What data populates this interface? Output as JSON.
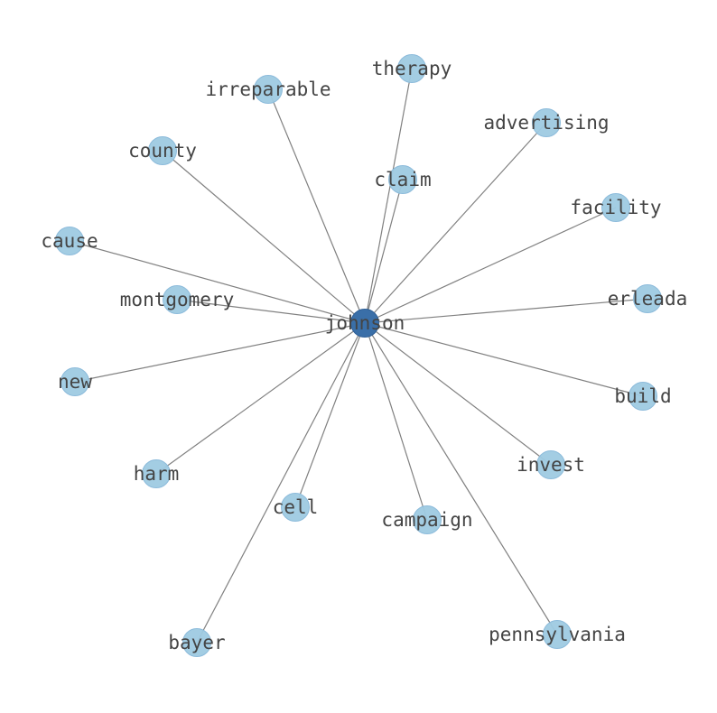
{
  "graph": {
    "center": "johnson",
    "leaves": [
      "therapy",
      "irreparable",
      "advertising",
      "county",
      "claim",
      "facility",
      "cause",
      "montgomery",
      "erleada",
      "new",
      "build",
      "invest",
      "harm",
      "cell",
      "campaign",
      "bayer",
      "pennsylvania"
    ],
    "colors": {
      "center_node": "#3a6fa8",
      "leaf_node": "#9ecae1",
      "edge": "#808080",
      "label": "#444444"
    }
  }
}
